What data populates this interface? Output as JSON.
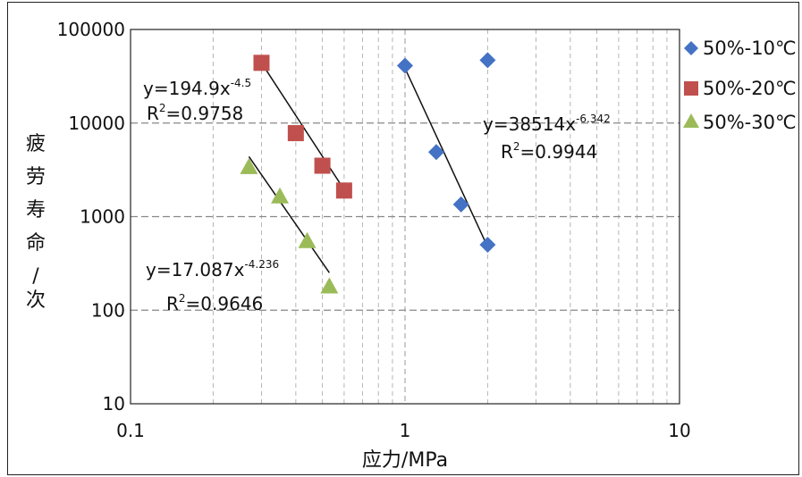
{
  "chart_data": {
    "type": "scatter",
    "title": "",
    "xlabel": "应力/MPa",
    "ylabel_chars": [
      "疲",
      "劳",
      "寿",
      "命",
      "/",
      "次"
    ],
    "x_scale": "log",
    "y_scale": "log",
    "xlim": [
      0.1,
      10
    ],
    "ylim": [
      10,
      100000
    ],
    "x_ticks": [
      "0.1",
      "1",
      "10"
    ],
    "y_ticks": [
      "10",
      "100",
      "1000",
      "10000",
      "100000"
    ],
    "grid": true,
    "legend_position": "right",
    "series": [
      {
        "name": "50%-10℃",
        "marker": "diamond",
        "color": "#4472c4",
        "points": [
          [
            1.0,
            41000
          ],
          [
            1.3,
            4900
          ],
          [
            1.6,
            1350
          ],
          [
            2.0,
            500
          ],
          [
            2.0,
            47000
          ]
        ],
        "fit": {
          "x_range": [
            1.0,
            2.0
          ],
          "equation_base": "y=38514x",
          "equation_exp": "-6.342",
          "r2_prefix": "R",
          "r2_sup": "2",
          "r2_value": "=0.9944"
        }
      },
      {
        "name": "50%-20℃",
        "marker": "square",
        "color": "#c0504d",
        "points": [
          [
            0.3,
            44000
          ],
          [
            0.4,
            7800
          ],
          [
            0.5,
            3500
          ],
          [
            0.6,
            1900
          ]
        ],
        "fit": {
          "x_range": [
            0.3,
            0.6
          ],
          "equation_base": "y=194.9x",
          "equation_exp": "-4.5",
          "r2_prefix": "R",
          "r2_sup": "2",
          "r2_value": "=0.9758"
        }
      },
      {
        "name": "50%-30℃",
        "marker": "triangle",
        "color": "#9bbb59",
        "points": [
          [
            0.27,
            3400
          ],
          [
            0.35,
            1650
          ],
          [
            0.44,
            550
          ],
          [
            0.53,
            180
          ]
        ],
        "fit": {
          "x_range": [
            0.27,
            0.53
          ],
          "equation_base": "y=17.087x",
          "equation_exp": "-4.236",
          "r2_prefix": "R",
          "r2_sup": "2",
          "r2_value": "=0.9646"
        }
      }
    ]
  }
}
